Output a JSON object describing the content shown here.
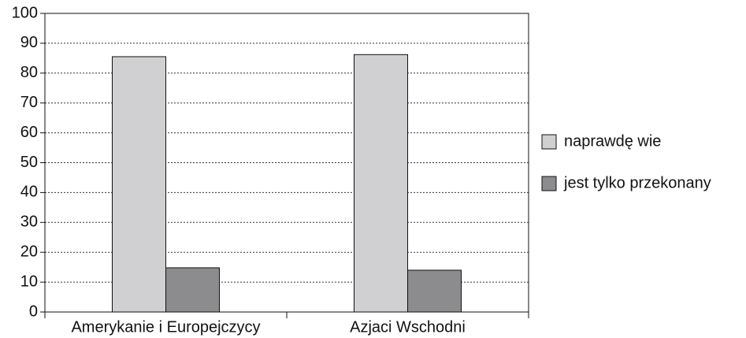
{
  "chart_data": {
    "type": "bar",
    "categories": [
      "Amerykanie i Europejczycy",
      "Azjaci Wschodni"
    ],
    "series": [
      {
        "name": "naprawdę wie",
        "color": "#d0d0d2",
        "values": [
          85.5,
          86.2
        ]
      },
      {
        "name": "jest tylko przekonany",
        "color": "#8c8c8e",
        "values": [
          14.8,
          14.0
        ]
      }
    ],
    "ylim": [
      0,
      100
    ],
    "yticks": [
      0,
      10,
      20,
      30,
      40,
      50,
      60,
      70,
      80,
      90,
      100
    ],
    "grid": true,
    "legend": "right"
  }
}
